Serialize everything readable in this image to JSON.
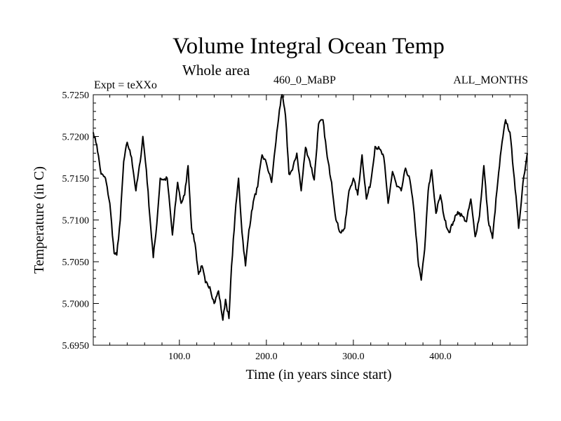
{
  "chart_data": {
    "type": "line",
    "title": "Volume Integral Ocean Temp",
    "subtitle": "Whole area",
    "experiment": "Expt = teXXo",
    "period": "460_0_MaBP",
    "months": "ALL_MONTHS",
    "xlabel": "Time (in years since start)",
    "ylabel": "Temperature (in C)",
    "xlim": [
      1,
      500
    ],
    "ylim": [
      5.695,
      5.725
    ],
    "x_ticks": [
      100,
      200,
      300,
      400
    ],
    "x_tick_labels": [
      "100.0",
      "200.0",
      "300.0",
      "400.0"
    ],
    "y_ticks": [
      5.695,
      5.7,
      5.705,
      5.71,
      5.715,
      5.72,
      5.725
    ],
    "y_tick_labels": [
      "5.6950",
      "5.7000",
      "5.7050",
      "5.7100",
      "5.7150",
      "5.7200",
      "5.7250"
    ],
    "series": [
      {
        "name": "Volume integral ocean temperature",
        "x": [
          1,
          5,
          10,
          15,
          20,
          25,
          28,
          32,
          36,
          40,
          45,
          50,
          55,
          58,
          62,
          66,
          70,
          74,
          78,
          82,
          86,
          92,
          98,
          102,
          106,
          110,
          114,
          118,
          122,
          126,
          130,
          135,
          140,
          145,
          150,
          153,
          157,
          160,
          164,
          168,
          172,
          176,
          180,
          185,
          190,
          195,
          200,
          206,
          210,
          215,
          218,
          222,
          226,
          230,
          235,
          240,
          245,
          250,
          255,
          260,
          265,
          270,
          275,
          280,
          285,
          290,
          295,
          300,
          305,
          310,
          315,
          320,
          325,
          330,
          335,
          340,
          345,
          350,
          355,
          360,
          365,
          370,
          375,
          378,
          382,
          386,
          390,
          395,
          400,
          405,
          410,
          415,
          420,
          425,
          430,
          435,
          440,
          445,
          450,
          455,
          460,
          465,
          470,
          475,
          480,
          485,
          490,
          495,
          500
        ],
        "values": [
          5.7205,
          5.719,
          5.7155,
          5.715,
          5.712,
          5.706,
          5.7058,
          5.71,
          5.717,
          5.7193,
          5.7175,
          5.7135,
          5.717,
          5.72,
          5.716,
          5.7105,
          5.7055,
          5.7095,
          5.715,
          5.7148,
          5.715,
          5.7082,
          5.7145,
          5.712,
          5.713,
          5.7165,
          5.709,
          5.7072,
          5.7035,
          5.7045,
          5.7025,
          5.702,
          5.7,
          5.7015,
          5.698,
          5.7005,
          5.6982,
          5.7045,
          5.7105,
          5.715,
          5.7085,
          5.7045,
          5.7088,
          5.7122,
          5.714,
          5.7178,
          5.7168,
          5.7145,
          5.7185,
          5.7232,
          5.725,
          5.7225,
          5.7155,
          5.716,
          5.718,
          5.7135,
          5.7187,
          5.717,
          5.7148,
          5.7215,
          5.722,
          5.7175,
          5.7145,
          5.71,
          5.7085,
          5.709,
          5.7135,
          5.715,
          5.713,
          5.7178,
          5.7125,
          5.7145,
          5.7188,
          5.7185,
          5.7175,
          5.712,
          5.7158,
          5.714,
          5.7135,
          5.7162,
          5.7148,
          5.7108,
          5.7045,
          5.7028,
          5.7065,
          5.7135,
          5.716,
          5.7108,
          5.713,
          5.71,
          5.7085,
          5.7098,
          5.711,
          5.7105,
          5.7098,
          5.7125,
          5.708,
          5.7105,
          5.7165,
          5.71,
          5.7078,
          5.7135,
          5.7185,
          5.722,
          5.7205,
          5.715,
          5.709,
          5.7145,
          5.718
        ]
      }
    ]
  }
}
